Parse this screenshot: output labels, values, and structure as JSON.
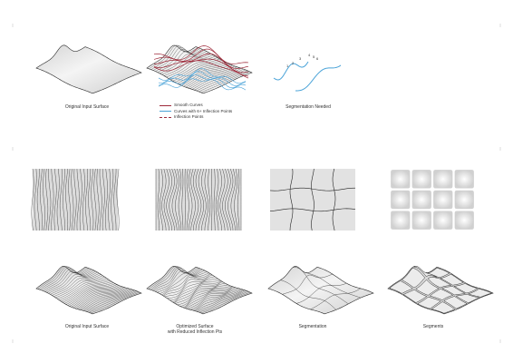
{
  "captions": {
    "top_original": "Original Input Surface",
    "segmentation_needed": "Segmentation Needed",
    "bottom_original": "Original Input Surface",
    "optimized_line1": "Optimized Surface",
    "optimized_line2": "with Reduced Inflection Pts",
    "segmentation": "Segmentation",
    "segments": "Segments"
  },
  "legend": [
    {
      "label": "Smooth Curves",
      "color": "#9e2a3a",
      "style": "solid"
    },
    {
      "label": "Curves with 6+ Inflection Points",
      "color": "#4aa3d8",
      "style": "solid"
    },
    {
      "label": "Inflection Points",
      "color": "#9e2a3a",
      "style": "dashed"
    }
  ],
  "segmentation_marks": [
    "1",
    "2",
    "3",
    "4",
    "5",
    "6"
  ],
  "colors": {
    "line": "#2a2a2a",
    "accent_red": "#9e2a3a",
    "accent_blue": "#4aa3d8",
    "surface": "#e2e2e2"
  }
}
